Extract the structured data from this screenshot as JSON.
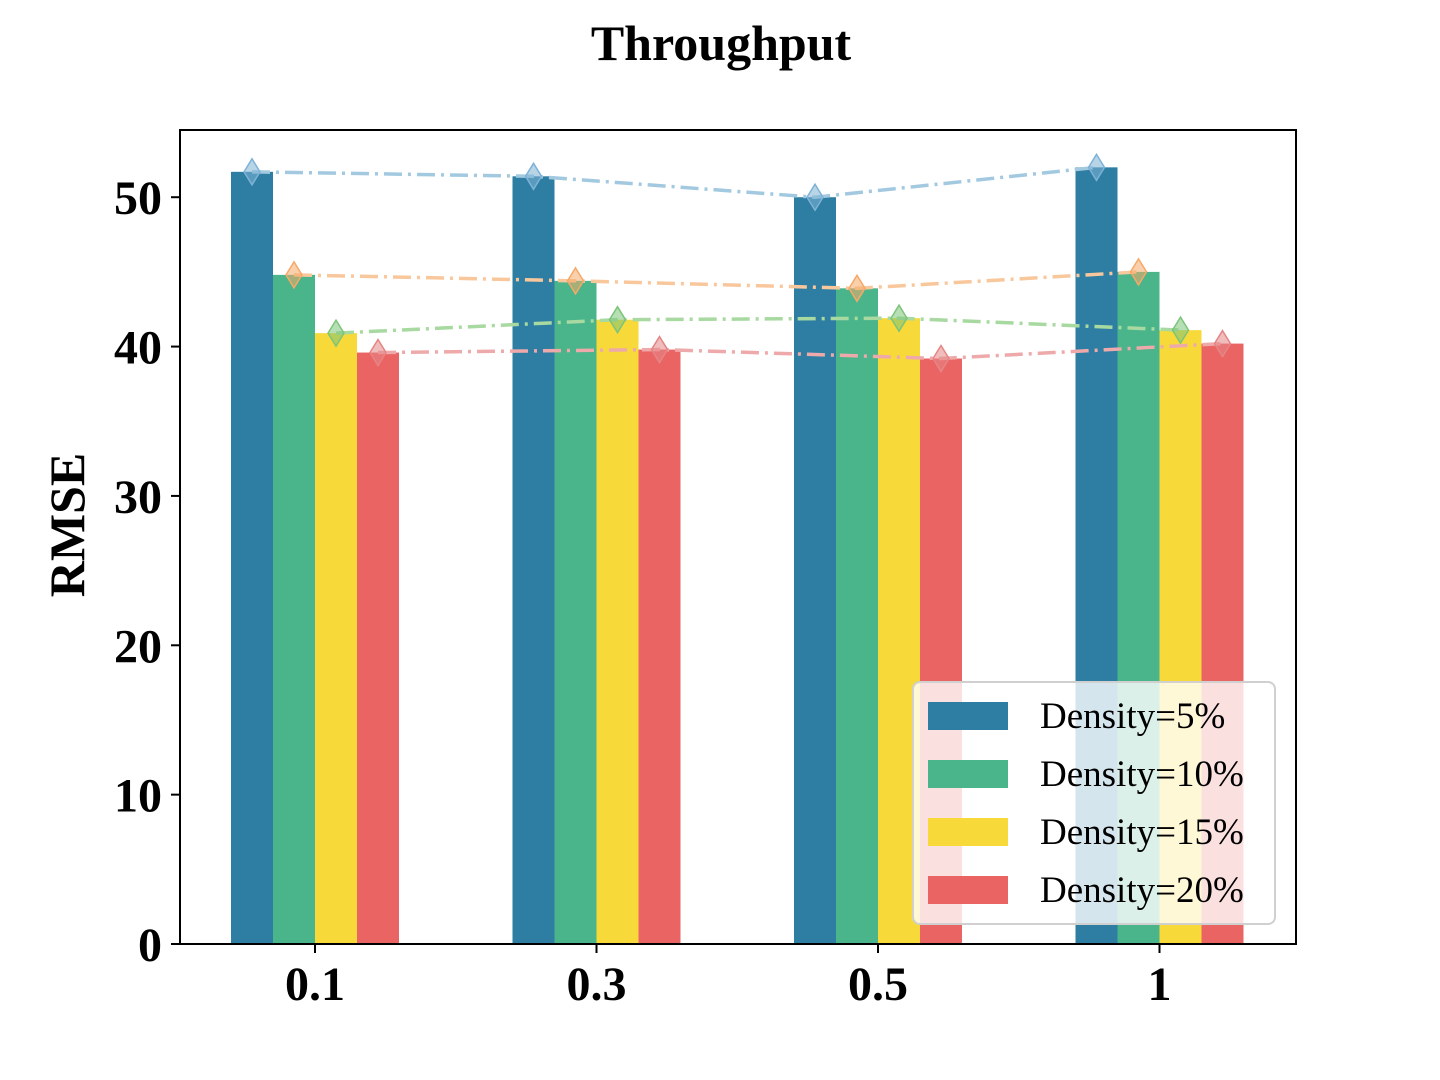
{
  "chart_data": {
    "type": "bar",
    "title": "Throughput",
    "xlabel": "",
    "ylabel": "RMSE",
    "categories": [
      "0.1",
      "0.3",
      "0.5",
      "1"
    ],
    "yticks": [
      "0",
      "10",
      "20",
      "30",
      "40",
      "50"
    ],
    "ylim": [
      0,
      54.5
    ],
    "series": [
      {
        "name": "Density=5%",
        "values": [
          51.7,
          51.4,
          50.0,
          52.0
        ],
        "color": "#2e7ea3",
        "line_color": "#a2c9e0",
        "marker_color": "#7eb2d6"
      },
      {
        "name": "Density=10%",
        "values": [
          44.8,
          44.4,
          43.9,
          45.0
        ],
        "color": "#4ab48a",
        "line_color": "#f9c79c",
        "marker_color": "#f5a968"
      },
      {
        "name": "Density=15%",
        "values": [
          40.9,
          41.8,
          41.9,
          41.1
        ],
        "color": "#f7da39",
        "line_color": "#a7d9a0",
        "marker_color": "#7cc47a"
      },
      {
        "name": "Density=20%",
        "values": [
          39.6,
          39.8,
          39.2,
          40.2
        ],
        "color": "#eb6464",
        "line_color": "#eeaaaa",
        "marker_color": "#e58585"
      }
    ],
    "legend": {
      "position": "lower-right"
    },
    "grid": false
  }
}
